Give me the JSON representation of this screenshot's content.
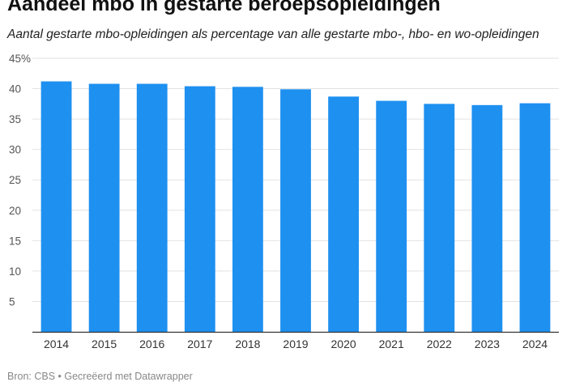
{
  "chart_data": {
    "type": "bar",
    "title": "Aandeel mbo in gestarte beroepsopleidingen",
    "subtitle": "Aantal gestarte mbo-opleidingen als percentage van alle gestarte mbo-, hbo- en wo-opleidingen",
    "categories": [
      "2014",
      "2015",
      "2016",
      "2017",
      "2018",
      "2019",
      "2020",
      "2021",
      "2022",
      "2023",
      "2024"
    ],
    "values": [
      41.2,
      40.8,
      40.8,
      40.4,
      40.3,
      39.9,
      38.7,
      38.0,
      37.5,
      37.3,
      37.6
    ],
    "ylim": [
      0,
      45
    ],
    "yticks": [
      5,
      10,
      15,
      20,
      25,
      30,
      35,
      40,
      45
    ],
    "ytick_labels": [
      "5",
      "10",
      "15",
      "20",
      "25",
      "30",
      "35",
      "40",
      "45%"
    ],
    "xlabel": "",
    "ylabel": "",
    "grid": true,
    "bar_color": "#1e90f0"
  },
  "footer": {
    "source": "Bron: CBS • Gecreëerd met Datawrapper"
  }
}
